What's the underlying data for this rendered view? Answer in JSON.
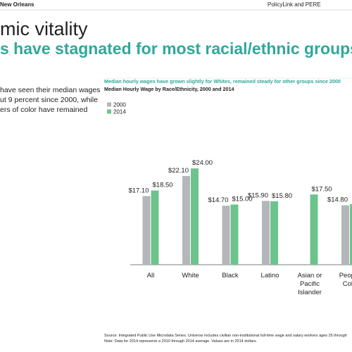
{
  "header": {
    "location": "New Orleans",
    "publisher": "PolicyLink and PERE"
  },
  "section_title": "mic vitality",
  "headline": "s have stagnated for most racial/ethnic groups",
  "body_lines": [
    "have seen their median wages",
    "ut 9 percent since 2000, while",
    "ers of color have remained"
  ],
  "chart_data": {
    "type": "bar",
    "title": "Median hourly wages have grown slightly for Whites, remained steady for other groups since 2000",
    "subtitle": "Median Hourly Wage by Race/Ethnicity, 2000 and 2014",
    "categories": [
      "All",
      "White",
      "Black",
      "Latino",
      "Asian or\nPacific\nIslander",
      "People\nColo"
    ],
    "series": [
      {
        "name": "2000",
        "color": "#b4b6b9",
        "values": [
          17.1,
          22.1,
          14.7,
          15.9,
          null,
          14.8
        ],
        "value_labels": [
          "$17.10",
          "$22.10",
          "$14.70",
          "$15.90",
          null,
          "$14.80"
        ]
      },
      {
        "name": "2014",
        "color": "#6cc48c",
        "values": [
          18.5,
          24.0,
          15.0,
          15.8,
          17.5,
          15.1
        ],
        "value_labels": [
          "$18.50",
          "$24.00",
          "$15.00",
          "$15.80",
          "$17.50",
          null
        ]
      }
    ],
    "ylim": [
      0,
      30
    ]
  },
  "notes": [
    "Source: Integrated Public Use Microdata Series. Universe includes civilian non-institutional full-time wage and salary workers ages 25 through",
    "Note: Data for 2014 represents a 2010 through 2014 average. Values are in 2014 dollars."
  ]
}
